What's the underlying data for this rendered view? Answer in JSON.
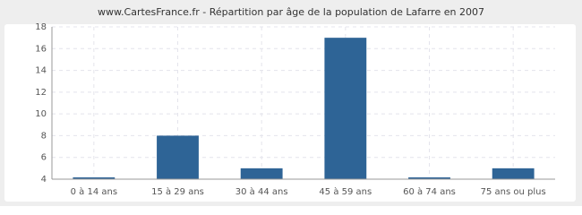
{
  "chart_data": {
    "type": "bar",
    "title": "www.CartesFrance.fr - Répartition par âge de la population de Lafarre en 2007",
    "categories": [
      "0 à 14 ans",
      "15 à 29 ans",
      "30 à 44 ans",
      "45 à 59 ans",
      "60 à 74 ans",
      "75 ans ou plus"
    ],
    "values": [
      4,
      8,
      5,
      17,
      4,
      5
    ],
    "color": "#2e6496",
    "ylim": [
      4,
      18
    ],
    "yticks": [
      4,
      6,
      8,
      10,
      12,
      14,
      16,
      18
    ],
    "grid": true
  }
}
